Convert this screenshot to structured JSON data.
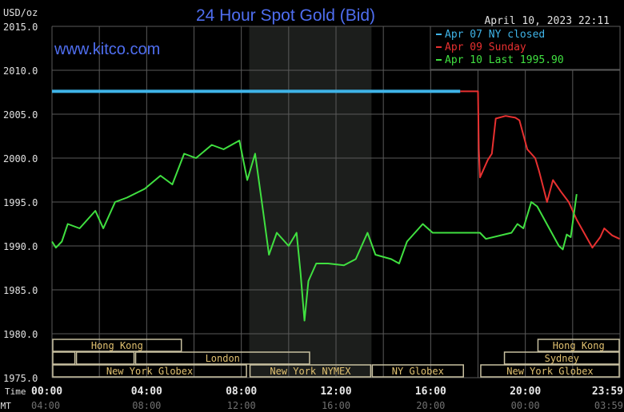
{
  "chart_data": {
    "type": "line",
    "title": "24 Hour Spot Gold (Bid)",
    "watermark": "www.kitco.com",
    "timestamp": "April 10, 2023 22:11",
    "ylabel": "USD/oz",
    "ylim": [
      1975,
      2015
    ],
    "yticks": [
      "2015.0",
      "2010.0",
      "2005.0",
      "2000.0",
      "1995.0",
      "1990.0",
      "1985.0",
      "1980.0",
      "1975.0"
    ],
    "xlim": [
      "00:00",
      "24:00"
    ],
    "xlabel_primary": "Time",
    "xlabel_secondary": "GMT",
    "xticks": [
      "00:00",
      "04:00",
      "08:00",
      "12:00",
      "16:00",
      "20:00",
      "23:59"
    ],
    "xticks_gmt": [
      "04:00",
      "08:00",
      "12:00",
      "16:00",
      "20:00",
      "00:00",
      "03:59"
    ],
    "grid": true,
    "legend_position": "top-right",
    "shaded_period": [
      "08:20",
      "13:30"
    ],
    "colors": {
      "background": "#000000",
      "grid": "#5a5a5a",
      "shade": "#1c1e1c",
      "title": "#4f6ef0",
      "session": "#e0c070",
      "session_border": "#c8c0a0"
    },
    "series": [
      {
        "name": "Apr 07 NY closed",
        "color": "#3fb4e8",
        "points": [
          [
            "00:00",
            2007.6
          ],
          [
            "17:15",
            2007.6
          ]
        ]
      },
      {
        "name": "Apr 09 Sunday",
        "color": "#e83030",
        "points": [
          [
            "17:15",
            2007.6
          ],
          [
            "18:00",
            2007.6
          ],
          [
            "18:02",
            2001
          ],
          [
            "18:05",
            1997.8
          ],
          [
            "18:25",
            1999.8
          ],
          [
            "18:35",
            2000.5
          ],
          [
            "18:45",
            2004.5
          ],
          [
            "19:10",
            2004.8
          ],
          [
            "19:35",
            2004.6
          ],
          [
            "19:45",
            2004.3
          ],
          [
            "20:05",
            2001
          ],
          [
            "20:25",
            2000
          ],
          [
            "20:35",
            1998.5
          ],
          [
            "20:55",
            1995
          ],
          [
            "21:10",
            1997.5
          ],
          [
            "21:30",
            1996.2
          ],
          [
            "21:50",
            1995
          ],
          [
            "22:10",
            1993
          ],
          [
            "22:50",
            1989.8
          ],
          [
            "23:10",
            1991
          ],
          [
            "23:20",
            1992
          ],
          [
            "23:40",
            1991.2
          ],
          [
            "23:59",
            1990.8
          ]
        ]
      },
      {
        "name": "Apr 10 Last 1995.90",
        "color": "#40e040",
        "points": [
          [
            "00:00",
            1990.5
          ],
          [
            "00:10",
            1989.8
          ],
          [
            "00:25",
            1990.5
          ],
          [
            "00:40",
            1992.5
          ],
          [
            "01:10",
            1992
          ],
          [
            "01:50",
            1994
          ],
          [
            "02:10",
            1992
          ],
          [
            "02:40",
            1995
          ],
          [
            "03:10",
            1995.5
          ],
          [
            "03:55",
            1996.5
          ],
          [
            "04:35",
            1998
          ],
          [
            "05:05",
            1997
          ],
          [
            "05:35",
            2000.5
          ],
          [
            "06:05",
            2000
          ],
          [
            "06:45",
            2001.5
          ],
          [
            "07:15",
            2001
          ],
          [
            "07:55",
            2002
          ],
          [
            "08:15",
            1997.5
          ],
          [
            "08:35",
            2000.5
          ],
          [
            "08:55",
            1994
          ],
          [
            "09:10",
            1989
          ],
          [
            "09:30",
            1991.5
          ],
          [
            "10:00",
            1990
          ],
          [
            "10:20",
            1991.5
          ],
          [
            "10:30",
            1987
          ],
          [
            "10:40",
            1981.5
          ],
          [
            "10:50",
            1986
          ],
          [
            "11:10",
            1988
          ],
          [
            "11:40",
            1988
          ],
          [
            "12:20",
            1987.8
          ],
          [
            "12:50",
            1988.5
          ],
          [
            "13:20",
            1991.5
          ],
          [
            "13:40",
            1989
          ],
          [
            "14:20",
            1988.5
          ],
          [
            "14:40",
            1988
          ],
          [
            "15:00",
            1990.5
          ],
          [
            "15:40",
            1992.5
          ],
          [
            "16:05",
            1991.5
          ],
          [
            "17:25",
            1991.5
          ],
          [
            "18:05",
            1991.5
          ],
          [
            "18:20",
            1990.8
          ],
          [
            "19:25",
            1991.5
          ],
          [
            "19:40",
            1992.5
          ],
          [
            "19:55",
            1992
          ],
          [
            "20:15",
            1995
          ],
          [
            "20:30",
            1994.5
          ],
          [
            "21:25",
            1990
          ],
          [
            "21:35",
            1989.6
          ],
          [
            "21:45",
            1991.3
          ],
          [
            "21:55",
            1991
          ],
          [
            "22:10",
            1995.9
          ]
        ]
      }
    ],
    "sessions": [
      {
        "label": "Hong Kong",
        "row": 0,
        "start": "00:00",
        "end": "05:30"
      },
      {
        "label": "Hong Kong",
        "row": 0,
        "start": "20:30",
        "end": "24:00"
      },
      {
        "label": "",
        "row": 1,
        "start": "00:00",
        "end": "01:00"
      },
      {
        "label": "",
        "row": 1,
        "start": "01:00",
        "end": "03:30"
      },
      {
        "label": "London",
        "row": 1,
        "start": "03:30",
        "end": "10:55"
      },
      {
        "label": "Sydney",
        "row": 1,
        "start": "19:05",
        "end": "24:00"
      },
      {
        "label": "New York Globex",
        "row": 2,
        "start": "00:00",
        "end": "08:15"
      },
      {
        "label": "New York NYMEX",
        "row": 2,
        "start": "08:20",
        "end": "13:30"
      },
      {
        "label": "NY Globex",
        "row": 2,
        "start": "13:30",
        "end": "17:25"
      },
      {
        "label": "New York Globex",
        "row": 2,
        "start": "18:05",
        "end": "24:00"
      }
    ]
  }
}
